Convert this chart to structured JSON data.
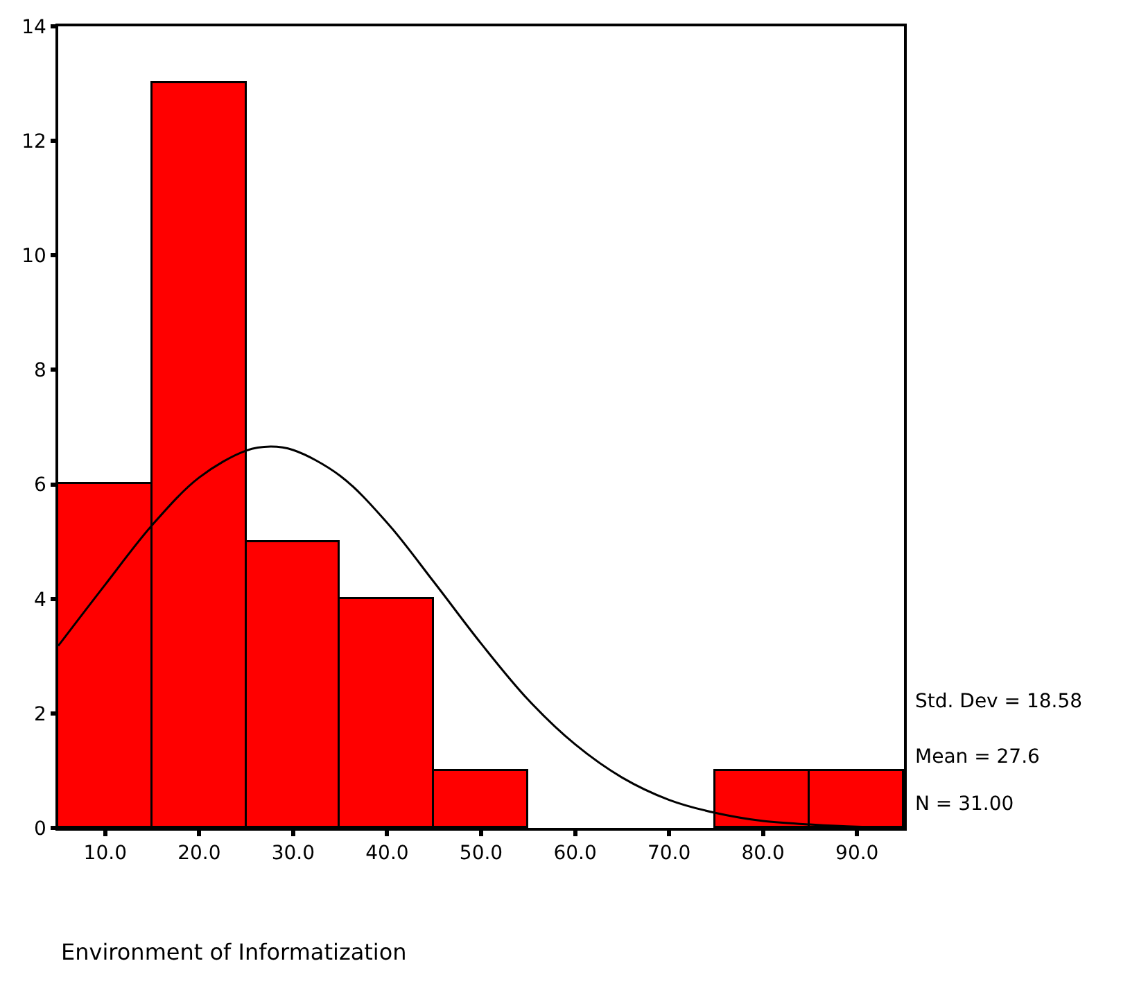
{
  "chart_data": {
    "type": "histogram",
    "xlabel": "Environment of Informatization",
    "bins": [
      5,
      15,
      25,
      35,
      45,
      55,
      65,
      75,
      85,
      95
    ],
    "values": [
      6,
      13,
      5,
      4,
      1,
      0,
      0,
      1,
      1
    ],
    "color": "#ff0000",
    "series": [
      {
        "type": "line",
        "color": "#000000",
        "x": [
          5,
          10,
          15,
          20,
          25,
          27.6,
          30,
          35,
          40,
          45,
          50,
          55,
          60,
          65,
          70,
          75,
          80,
          85,
          90,
          95
        ],
        "values": [
          3.18,
          4.25,
          5.29,
          6.12,
          6.59,
          6.66,
          6.6,
          6.15,
          5.33,
          4.29,
          3.22,
          2.24,
          1.46,
          0.88,
          0.49,
          0.26,
          0.12,
          0.06,
          0.02,
          0.01
        ]
      }
    ],
    "xlim": [
      5,
      95
    ],
    "xticks": [
      {
        "value": 10,
        "label": "10.0"
      },
      {
        "value": 20,
        "label": "20.0"
      },
      {
        "value": 30,
        "label": "30.0"
      },
      {
        "value": 40,
        "label": "40.0"
      },
      {
        "value": 50,
        "label": "50.0"
      },
      {
        "value": 60,
        "label": "60.0"
      },
      {
        "value": 70,
        "label": "70.0"
      },
      {
        "value": 80,
        "label": "80.0"
      },
      {
        "value": 90,
        "label": "90.0"
      }
    ],
    "ylim": [
      0,
      14
    ],
    "yticks": [
      0,
      2,
      4,
      6,
      8,
      10,
      12,
      14
    ],
    "annotations": [
      "Std. Dev = 18.58",
      "Mean = 27.6",
      "N = 31.00"
    ]
  }
}
